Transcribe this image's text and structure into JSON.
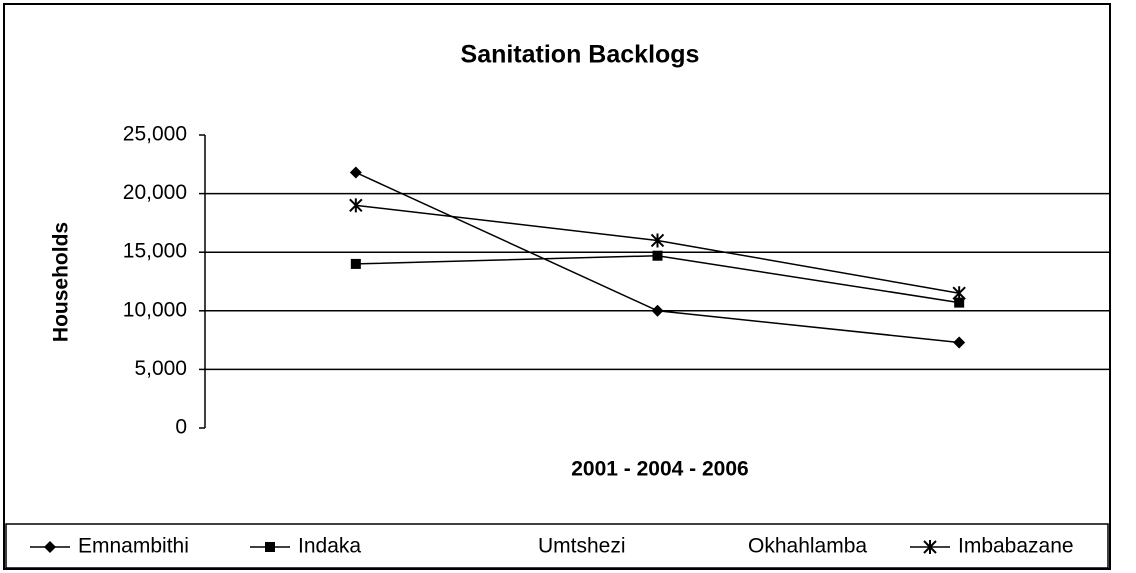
{
  "chart_data": {
    "type": "line",
    "title": "Sanitation Backlogs",
    "x_label": "2001 - 2004 - 2006",
    "y_label": "Households",
    "categories": [
      null,
      null,
      null
    ],
    "series": [
      {
        "name": "Emnambithi",
        "color": "#000000",
        "marker": "diamond",
        "values": [
          21800,
          10000,
          7300
        ]
      },
      {
        "name": "Indaka",
        "color": "#000000",
        "marker": "square",
        "values": [
          14000,
          14700,
          10700
        ]
      },
      {
        "name": "Umtshezi",
        "color": "#000000",
        "marker": "none",
        "values": [
          null,
          null,
          null
        ]
      },
      {
        "name": "Okhahlamba",
        "color": "#000000",
        "marker": "none",
        "values": [
          null,
          null,
          null
        ]
      },
      {
        "name": "Imbabazane",
        "color": "#000000",
        "marker": "star",
        "values": [
          19000,
          16000,
          11500
        ]
      }
    ],
    "ylim": [
      0,
      25000
    ],
    "yticks": [
      0,
      {
        "value": 5000,
        "label": "5,000"
      },
      {
        "value": 10000,
        "label": "10,000"
      },
      {
        "value": 15000,
        "label": "15,000"
      },
      {
        "value": 20000,
        "label": "20,000"
      },
      {
        "value": 25000,
        "label": "25,000"
      }
    ],
    "grid": true,
    "legend": "bottom"
  }
}
